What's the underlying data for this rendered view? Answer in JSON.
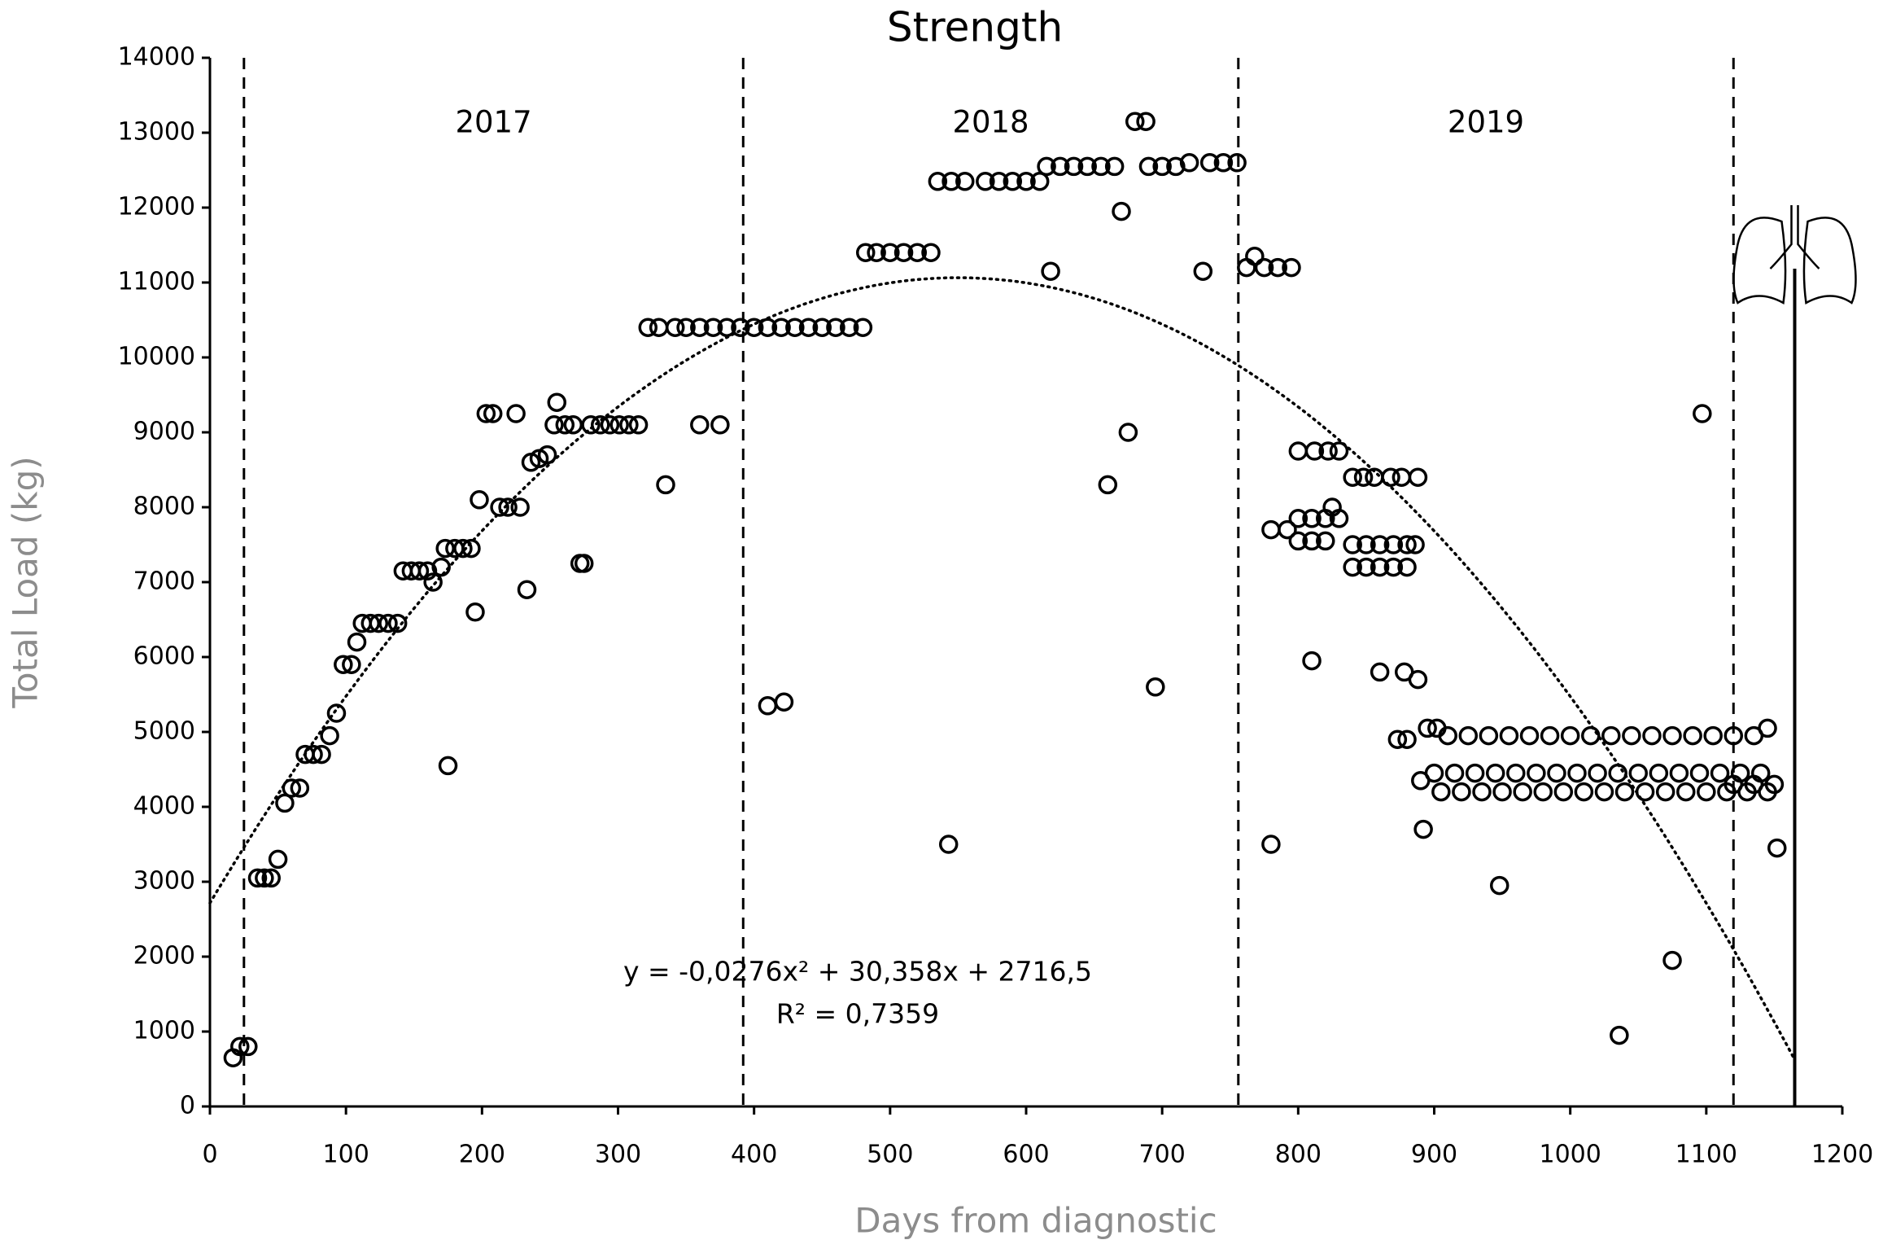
{
  "chart_data": {
    "type": "scatter",
    "title": "Strength",
    "x_label": "Days from diagnostic",
    "y_label": "Total Load (kg)",
    "xlim": [
      0,
      1200
    ],
    "ylim": [
      0,
      14000
    ],
    "xticks": [
      0,
      100,
      200,
      300,
      400,
      500,
      600,
      700,
      800,
      900,
      1000,
      1100,
      1200
    ],
    "yticks": [
      0,
      1000,
      2000,
      3000,
      4000,
      5000,
      6000,
      7000,
      8000,
      9000,
      10000,
      11000,
      12000,
      13000,
      14000
    ],
    "color": "#000000",
    "marker": "open-circle",
    "vlines": [
      25,
      392,
      756,
      1120
    ],
    "period_labels": [
      "2017",
      "2018",
      "2019"
    ],
    "event_line": 1165,
    "trendline": {
      "coefficients": [
        -0.0276,
        30.358,
        2716.5
      ],
      "xlim": [
        0,
        1165
      ],
      "equation": "y = -0,0276x² + 30,358x + 2716,5",
      "r2": "R² = 0,7359"
    },
    "x": [
      17,
      22,
      28,
      35,
      40,
      45,
      50,
      55,
      60,
      66,
      70,
      76,
      82,
      88,
      93,
      98,
      104,
      108,
      112,
      118,
      124,
      131,
      138,
      142,
      148,
      154,
      160,
      164,
      170,
      175,
      173,
      180,
      186,
      192,
      195,
      198,
      203,
      208,
      213,
      219,
      225,
      228,
      233,
      236,
      242,
      248,
      253,
      255,
      261,
      267,
      272,
      275,
      280,
      287,
      294,
      301,
      308,
      315,
      322,
      330,
      335,
      342,
      350,
      360,
      360,
      370,
      375,
      380,
      390,
      400,
      410,
      410,
      420,
      422,
      430,
      440,
      450,
      460,
      470,
      480,
      482,
      490,
      500,
      510,
      520,
      530,
      535,
      545,
      543,
      555,
      570,
      580,
      590,
      600,
      610,
      615,
      618,
      625,
      635,
      645,
      655,
      660,
      665,
      670,
      675,
      680,
      688,
      690,
      695,
      700,
      710,
      720,
      730,
      735,
      745,
      755,
      762,
      768,
      775,
      780,
      785,
      795,
      780,
      792,
      800,
      812,
      822,
      830,
      800,
      810,
      820,
      800,
      810,
      820,
      825,
      830,
      810,
      840,
      848,
      856,
      868,
      876,
      888,
      840,
      850,
      860,
      870,
      880,
      886,
      840,
      850,
      860,
      870,
      880,
      860,
      878,
      888,
      873,
      880,
      890,
      892,
      895,
      902,
      948,
      1036,
      1075,
      1097,
      1145,
      1152,
      910,
      925,
      940,
      955,
      970,
      985,
      1000,
      1015,
      1030,
      1045,
      1060,
      1075,
      1090,
      1105,
      1120,
      1135,
      900,
      915,
      930,
      945,
      960,
      975,
      990,
      1005,
      1020,
      1035,
      1050,
      1065,
      1080,
      1095,
      1110,
      1125,
      1140,
      905,
      920,
      935,
      950,
      965,
      980,
      995,
      1010,
      1025,
      1040,
      1055,
      1070,
      1085,
      1100,
      1115,
      1130,
      1145,
      1120,
      1135,
      1150
    ],
    "values": [
      650,
      800,
      800,
      3050,
      3050,
      3050,
      3300,
      4050,
      4250,
      4250,
      4700,
      4700,
      4700,
      4950,
      5250,
      5900,
      5900,
      6200,
      6450,
      6450,
      6450,
      6450,
      6450,
      7150,
      7150,
      7150,
      7150,
      7000,
      7200,
      4550,
      7450,
      7450,
      7450,
      7450,
      6600,
      8100,
      9250,
      9250,
      8000,
      8000,
      9250,
      8000,
      6900,
      8600,
      8650,
      8700,
      9100,
      9400,
      9100,
      9100,
      7250,
      7250,
      9100,
      9100,
      9100,
      9100,
      9100,
      9100,
      10400,
      10400,
      8300,
      10400,
      10400,
      9100,
      10400,
      10400,
      9100,
      10400,
      10400,
      10400,
      5350,
      10400,
      10400,
      5400,
      10400,
      10400,
      10400,
      10400,
      10400,
      10400,
      11400,
      11400,
      11400,
      11400,
      11400,
      11400,
      12350,
      12350,
      3500,
      12350,
      12350,
      12350,
      12350,
      12350,
      12350,
      12550,
      11150,
      12550,
      12550,
      12550,
      12550,
      8300,
      12550,
      11950,
      9000,
      13150,
      13150,
      12550,
      5600,
      12550,
      12550,
      12600,
      11150,
      12600,
      12600,
      12600,
      11200,
      11350,
      11200,
      3500,
      11200,
      11200,
      7700,
      7700,
      8750,
      8750,
      8750,
      8750,
      7550,
      7550,
      7550,
      7850,
      7850,
      7850,
      8000,
      7850,
      5950,
      8400,
      8400,
      8400,
      8400,
      8400,
      8400,
      7500,
      7500,
      7500,
      7500,
      7500,
      7500,
      7200,
      7200,
      7200,
      7200,
      7200,
      5800,
      5800,
      5700,
      4900,
      4900,
      4350,
      3700,
      5050,
      5050,
      2950,
      950,
      1950,
      9250,
      5050,
      3450,
      4950,
      4950,
      4950,
      4950,
      4950,
      4950,
      4950,
      4950,
      4950,
      4950,
      4950,
      4950,
      4950,
      4950,
      4950,
      4950,
      4450,
      4450,
      4450,
      4450,
      4450,
      4450,
      4450,
      4450,
      4450,
      4450,
      4450,
      4450,
      4450,
      4450,
      4450,
      4450,
      4450,
      4200,
      4200,
      4200,
      4200,
      4200,
      4200,
      4200,
      4200,
      4200,
      4200,
      4200,
      4200,
      4200,
      4200,
      4200,
      4200,
      4200,
      4300,
      4300,
      4300
    ]
  }
}
